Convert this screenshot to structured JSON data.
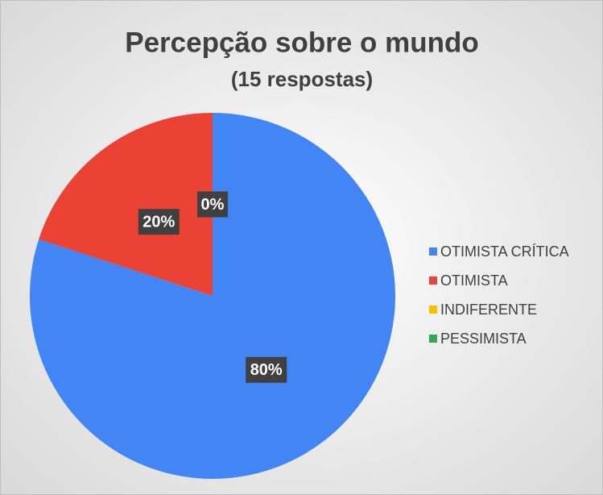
{
  "chart_data": {
    "type": "pie",
    "title": "Percepção sobre o mundo",
    "subtitle": "(15 respostas)",
    "categories": [
      "OTIMISTA CRÍTICA",
      "OTIMISTA",
      "INDIFERENTE",
      "PESSIMISTA"
    ],
    "values": [
      80,
      20,
      0,
      0
    ],
    "value_labels": [
      "80%",
      "20%",
      "0%",
      "0%"
    ],
    "colors": [
      "#4285f4",
      "#ea4335",
      "#fbbc04",
      "#34a853"
    ],
    "legend": "right"
  }
}
